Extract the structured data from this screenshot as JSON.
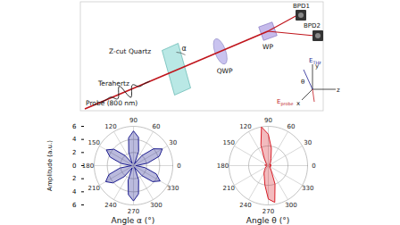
{
  "diagram": {
    "labels": {
      "bpd1": "BPD1",
      "bpd2": "BPD2",
      "wp": "WP",
      "qwp": "QWP",
      "crystal": "Z-cut Quartz",
      "thz": "Terahertz",
      "probe": "Probe (800 nm)",
      "alpha": "α",
      "e_thz": "E",
      "e_thz_sub": "THz",
      "e_probe": "E",
      "e_probe_sub": "probe",
      "theta": "θ",
      "x": "x",
      "y": "y",
      "z": "z"
    }
  },
  "chart_data": [
    {
      "type": "polar",
      "x_label": "Angle α (°)",
      "y_label": "Amplitude (a.u.)",
      "color": "#1c1c8f",
      "x": [
        0,
        10,
        20,
        30,
        40,
        50,
        60,
        70,
        80,
        90,
        100,
        110,
        120,
        130,
        140,
        150,
        160,
        170,
        180,
        190,
        200,
        210,
        220,
        230,
        240,
        250,
        260,
        270,
        280,
        290,
        300,
        310,
        320,
        330,
        340,
        350
      ],
      "values": [
        0.4,
        2.2,
        4.2,
        5.1,
        4.0,
        2.0,
        0.3,
        2.3,
        4.4,
        5.3,
        4.3,
        2.1,
        0.4,
        2.0,
        3.9,
        4.8,
        3.8,
        1.9,
        0.3,
        2.1,
        4.0,
        4.9,
        4.1,
        2.2,
        0.4,
        2.4,
        4.5,
        5.4,
        4.4,
        2.3,
        0.3,
        2.0,
        3.8,
        4.7,
        3.7,
        1.8
      ],
      "xlim": [
        0,
        360
      ],
      "xticks": [
        0,
        30,
        60,
        90,
        120,
        150,
        180,
        210,
        240,
        270,
        300,
        330
      ],
      "ylim": [
        0,
        6
      ],
      "yticks": [
        0,
        2,
        4,
        6
      ],
      "grid": true
    },
    {
      "type": "polar",
      "x_label": "Angle θ (°)",
      "color": "#d81e28",
      "x": [
        0,
        10,
        20,
        30,
        40,
        50,
        60,
        70,
        80,
        90,
        100,
        110,
        120,
        130,
        140,
        150,
        160,
        170,
        180,
        190,
        200,
        210,
        220,
        230,
        240,
        250,
        260,
        270,
        280,
        290,
        300,
        310,
        320,
        330,
        340,
        350
      ],
      "values": [
        0.05,
        0.08,
        0.06,
        0.04,
        0.05,
        0.08,
        0.12,
        0.2,
        0.45,
        0.8,
        1.0,
        0.55,
        0.2,
        0.1,
        0.06,
        0.05,
        0.07,
        0.09,
        0.06,
        0.04,
        0.05,
        0.07,
        0.1,
        0.15,
        0.22,
        0.3,
        0.5,
        0.85,
        0.95,
        0.5,
        0.15,
        0.08,
        0.05,
        0.04,
        0.06,
        0.07
      ],
      "xlim": [
        0,
        360
      ],
      "xticks": [
        0,
        30,
        60,
        90,
        120,
        150,
        180,
        210,
        240,
        270,
        300,
        330
      ],
      "ylim": [
        0,
        1
      ],
      "yticks": [
        0.5,
        1
      ],
      "grid": true,
      "tick_labels": "x"
    }
  ]
}
